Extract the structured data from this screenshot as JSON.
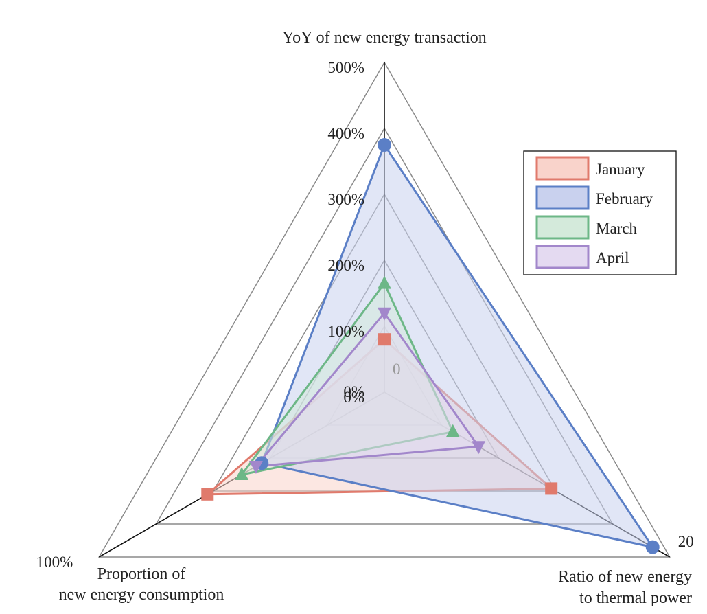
{
  "chart_data": {
    "type": "radar",
    "axes": [
      {
        "id": "yoy",
        "title_lines": [
          "YoY of new energy transaction"
        ],
        "max_label": "500%",
        "min": 0,
        "max": 500,
        "unit": "%",
        "tick_labels": [
          "500%",
          "400%",
          "300%",
          "200%",
          "100%",
          "0%"
        ]
      },
      {
        "id": "ratio",
        "title_lines": [
          "Ratio of new energy",
          "to thermal power"
        ],
        "max_label": "20",
        "min_label": "0",
        "min": 0,
        "max": 20
      },
      {
        "id": "proportion",
        "title_lines": [
          "Proportion of",
          "new energy consumption"
        ],
        "max_label": "100%",
        "min_label": "0%",
        "min": 0,
        "max": 100,
        "unit": "%"
      }
    ],
    "rings": 5,
    "series": [
      {
        "name": "January",
        "values": [
          80,
          11.7,
          62
        ],
        "marker": "square",
        "color": "#e07a6c",
        "fill": "#f9d3cb"
      },
      {
        "name": "February",
        "values": [
          375,
          18.8,
          43
        ],
        "marker": "circle",
        "color": "#5b7fc6",
        "fill": "#c9d1ee"
      },
      {
        "name": "March",
        "values": [
          165,
          4.8,
          50
        ],
        "marker": "triangle",
        "color": "#6db787",
        "fill": "#d4eadb"
      },
      {
        "name": "April",
        "values": [
          120,
          6.6,
          45
        ],
        "marker": "triangle-down",
        "color": "#a287cb",
        "fill": "#e4daf1"
      }
    ],
    "legend_position": "top-right"
  }
}
